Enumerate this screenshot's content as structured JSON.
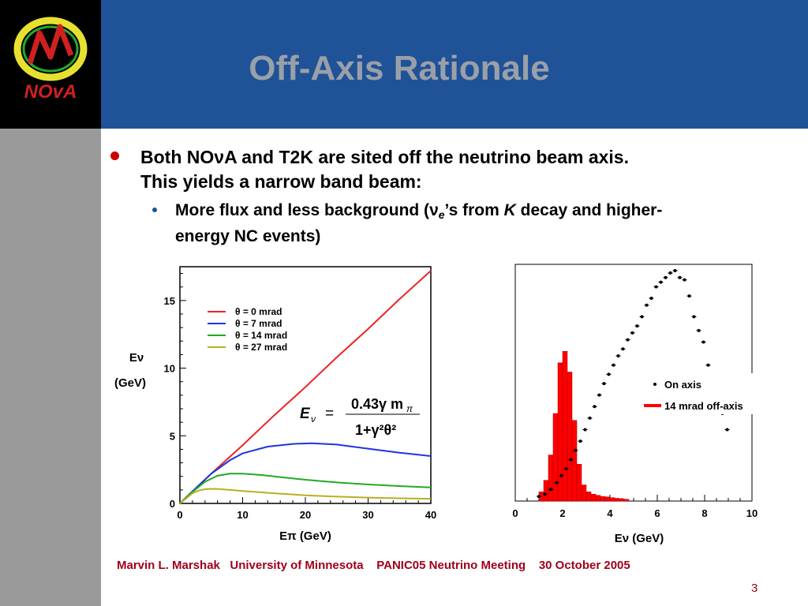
{
  "slide": {
    "title": "Off-Axis Rationale",
    "bullet1_a": "Both NO",
    "nu": "ν",
    "bullet1_b": "A and T2K are sited off the neutrino beam axis.",
    "bullet1_line2": "This yields a narrow band beam:",
    "bullet2_a": "More flux and less background (",
    "bullet2_sub": "e",
    "bullet2_b": "’s from ",
    "bullet2_k": "K",
    "bullet2_c": " decay and higher-",
    "bullet2_line2": "energy NC events)",
    "footer": "Marvin L. Marshak   University of Minnesota    PANIC05 Neutrino Meeting    30 October 2005",
    "page": "3"
  },
  "logo": {
    "text": "NOvA"
  },
  "colors": {
    "header": "#1f5297",
    "sidebar": "#9a9a9a",
    "footer_text": "#a0001a",
    "bullet_dot": "#cc0000"
  },
  "chart_data": [
    {
      "type": "line",
      "xlabel": "Eπ (GeV)",
      "ylabel": "Eν (GeV)",
      "xlim": [
        0,
        40
      ],
      "ylim": [
        0,
        17.5
      ],
      "xticks": [
        "0",
        "10",
        "20",
        "30",
        "40"
      ],
      "yticks": [
        "0",
        "5",
        "10",
        "15"
      ],
      "formula": {
        "lhs": "E",
        "lhs_sub": "ν",
        "eq": "=",
        "num": "0.43γ m",
        "num_sub": "π",
        "den": "1+γ²θ²"
      },
      "series": [
        {
          "name": "θ = 0 mrad",
          "color": "#ee2222",
          "x": [
            0,
            5,
            10,
            15,
            20,
            25,
            30,
            35,
            40
          ],
          "y": [
            0,
            2.2,
            4.3,
            6.5,
            8.6,
            10.8,
            12.9,
            15.1,
            17.2
          ]
        },
        {
          "name": "θ = 7 mrad",
          "color": "#2233dd",
          "x": [
            0,
            2,
            5,
            8,
            10,
            14,
            18,
            21,
            25,
            30,
            35,
            40
          ],
          "y": [
            0,
            0.9,
            2.2,
            3.2,
            3.7,
            4.2,
            4.4,
            4.45,
            4.35,
            4.05,
            3.75,
            3.5
          ]
        },
        {
          "name": "θ = 14 mrad",
          "color": "#22aa22",
          "x": [
            0,
            2,
            4,
            6,
            8,
            10,
            13,
            16,
            20,
            25,
            30,
            35,
            40
          ],
          "y": [
            0,
            0.85,
            1.6,
            2.05,
            2.2,
            2.2,
            2.1,
            1.95,
            1.75,
            1.55,
            1.4,
            1.28,
            1.18
          ]
        },
        {
          "name": "θ = 27 mrad",
          "color": "#b8b020",
          "x": [
            0,
            2,
            3,
            4,
            5,
            6,
            8,
            10,
            15,
            20,
            25,
            30,
            35,
            40
          ],
          "y": [
            0,
            0.75,
            0.95,
            1.05,
            1.08,
            1.07,
            1.0,
            0.92,
            0.75,
            0.6,
            0.5,
            0.43,
            0.38,
            0.34
          ]
        }
      ]
    },
    {
      "type": "scatter",
      "xlabel": "Eν (GeV)",
      "xlim": [
        0,
        10
      ],
      "xticks": [
        "0",
        "2",
        "4",
        "6",
        "8",
        "10"
      ],
      "legend": "right",
      "series": [
        {
          "name": "On axis",
          "color": "#000000",
          "x": [
            1.0,
            1.25,
            1.5,
            1.75,
            1.95,
            2.15,
            2.35,
            2.55,
            2.75,
            2.95,
            3.15,
            3.35,
            3.55,
            3.75,
            3.95,
            4.15,
            4.35,
            4.55,
            4.75,
            4.95,
            5.15,
            5.35,
            5.55,
            5.75,
            5.95,
            6.15,
            6.35,
            6.55,
            6.75,
            6.95,
            7.15,
            7.35,
            7.55,
            7.75,
            7.95,
            8.15,
            8.35,
            8.55,
            8.75,
            8.95
          ],
          "y": [
            0.02,
            0.03,
            0.05,
            0.08,
            0.11,
            0.14,
            0.18,
            0.22,
            0.26,
            0.31,
            0.36,
            0.41,
            0.46,
            0.51,
            0.55,
            0.59,
            0.63,
            0.66,
            0.7,
            0.73,
            0.76,
            0.8,
            0.85,
            0.88,
            0.93,
            0.95,
            0.97,
            0.99,
            1.0,
            0.97,
            0.96,
            0.89,
            0.8,
            0.74,
            0.69,
            0.59,
            0.52,
            0.44,
            0.38,
            0.31
          ]
        },
        {
          "name": "14 mrad off-axis",
          "color": "#ff0000",
          "x": [
            1.1,
            1.3,
            1.5,
            1.7,
            1.9,
            2.1,
            2.3,
            2.5,
            2.7,
            2.9,
            3.1,
            3.3,
            3.5,
            3.7,
            3.9,
            4.1,
            4.3,
            4.5,
            4.7
          ],
          "y": [
            0.04,
            0.09,
            0.2,
            0.38,
            0.6,
            0.65,
            0.56,
            0.35,
            0.16,
            0.07,
            0.04,
            0.03,
            0.025,
            0.02,
            0.018,
            0.015,
            0.012,
            0.01,
            0.008
          ]
        }
      ]
    }
  ]
}
